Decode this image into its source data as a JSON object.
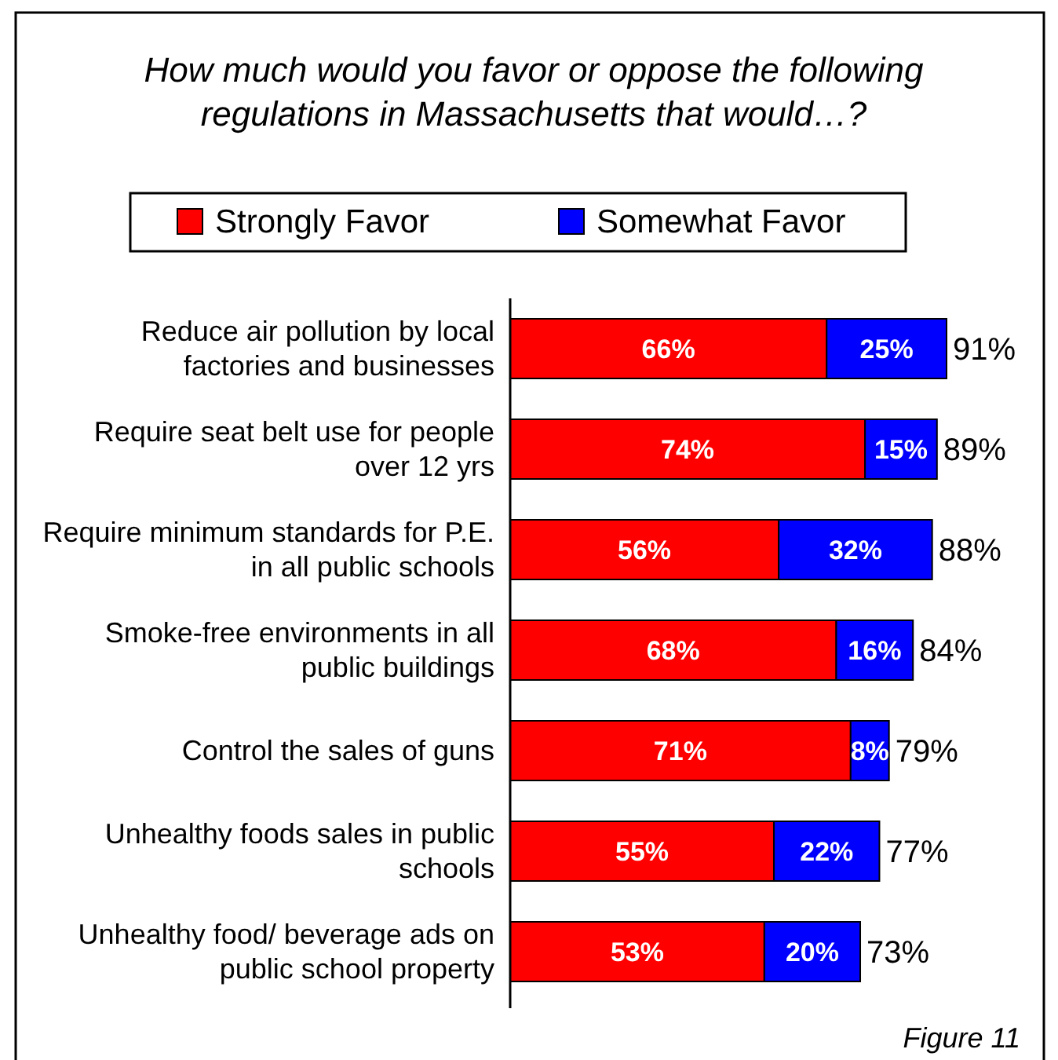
{
  "chart_data": {
    "type": "bar",
    "orientation": "horizontal",
    "stacked": true,
    "title": "How much would you favor or oppose the following regulations in Massachusetts that would…?",
    "categories": [
      "Reduce air pollution by local factories and businesses",
      "Require seat belt use for people over 12 yrs",
      "Require minimum standards for P.E. in all public schools",
      "Smoke-free environments in all public buildings",
      "Control the sales of guns",
      "Unhealthy foods sales in public schools",
      "Unhealthy food/ beverage ads on public school property"
    ],
    "series": [
      {
        "name": "Strongly Favor",
        "color": "#ff0000",
        "values": [
          66,
          74,
          56,
          68,
          71,
          55,
          53
        ],
        "value_labels": [
          "66%",
          "74%",
          "56%",
          "68%",
          "71%",
          "55%",
          "53%"
        ]
      },
      {
        "name": "Somewhat Favor",
        "color": "#0000ff",
        "values": [
          25,
          15,
          32,
          16,
          8,
          22,
          20
        ],
        "value_labels": [
          "25%",
          "15%",
          "32%",
          "16%",
          "8%",
          "22%",
          "20%"
        ]
      }
    ],
    "totals": [
      "91%",
      "89%",
      "88%",
      "84%",
      "79%",
      "77%",
      "73%"
    ],
    "legend": "top",
    "annotations": [
      "Figure 11"
    ]
  }
}
